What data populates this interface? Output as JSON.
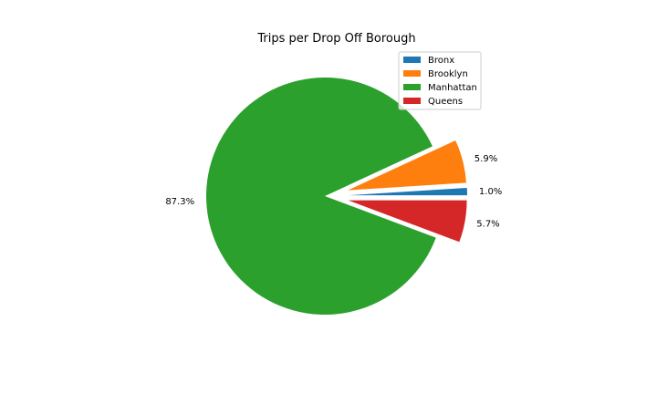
{
  "chart_data": {
    "type": "pie",
    "title": "Trips per Drop Off Borough",
    "categories": [
      "Bronx",
      "Brooklyn",
      "Manhattan",
      "Queens"
    ],
    "values": [
      1.0,
      5.9,
      87.3,
      5.7
    ],
    "labels": [
      "1.0%",
      "5.9%",
      "87.3%",
      "5.7%"
    ],
    "exploded": [
      true,
      true,
      false,
      true
    ],
    "colors": [
      "#1f77b4",
      "#ff7f0e",
      "#2ca02c",
      "#d62728"
    ],
    "legend": {
      "position": "top-right"
    }
  }
}
